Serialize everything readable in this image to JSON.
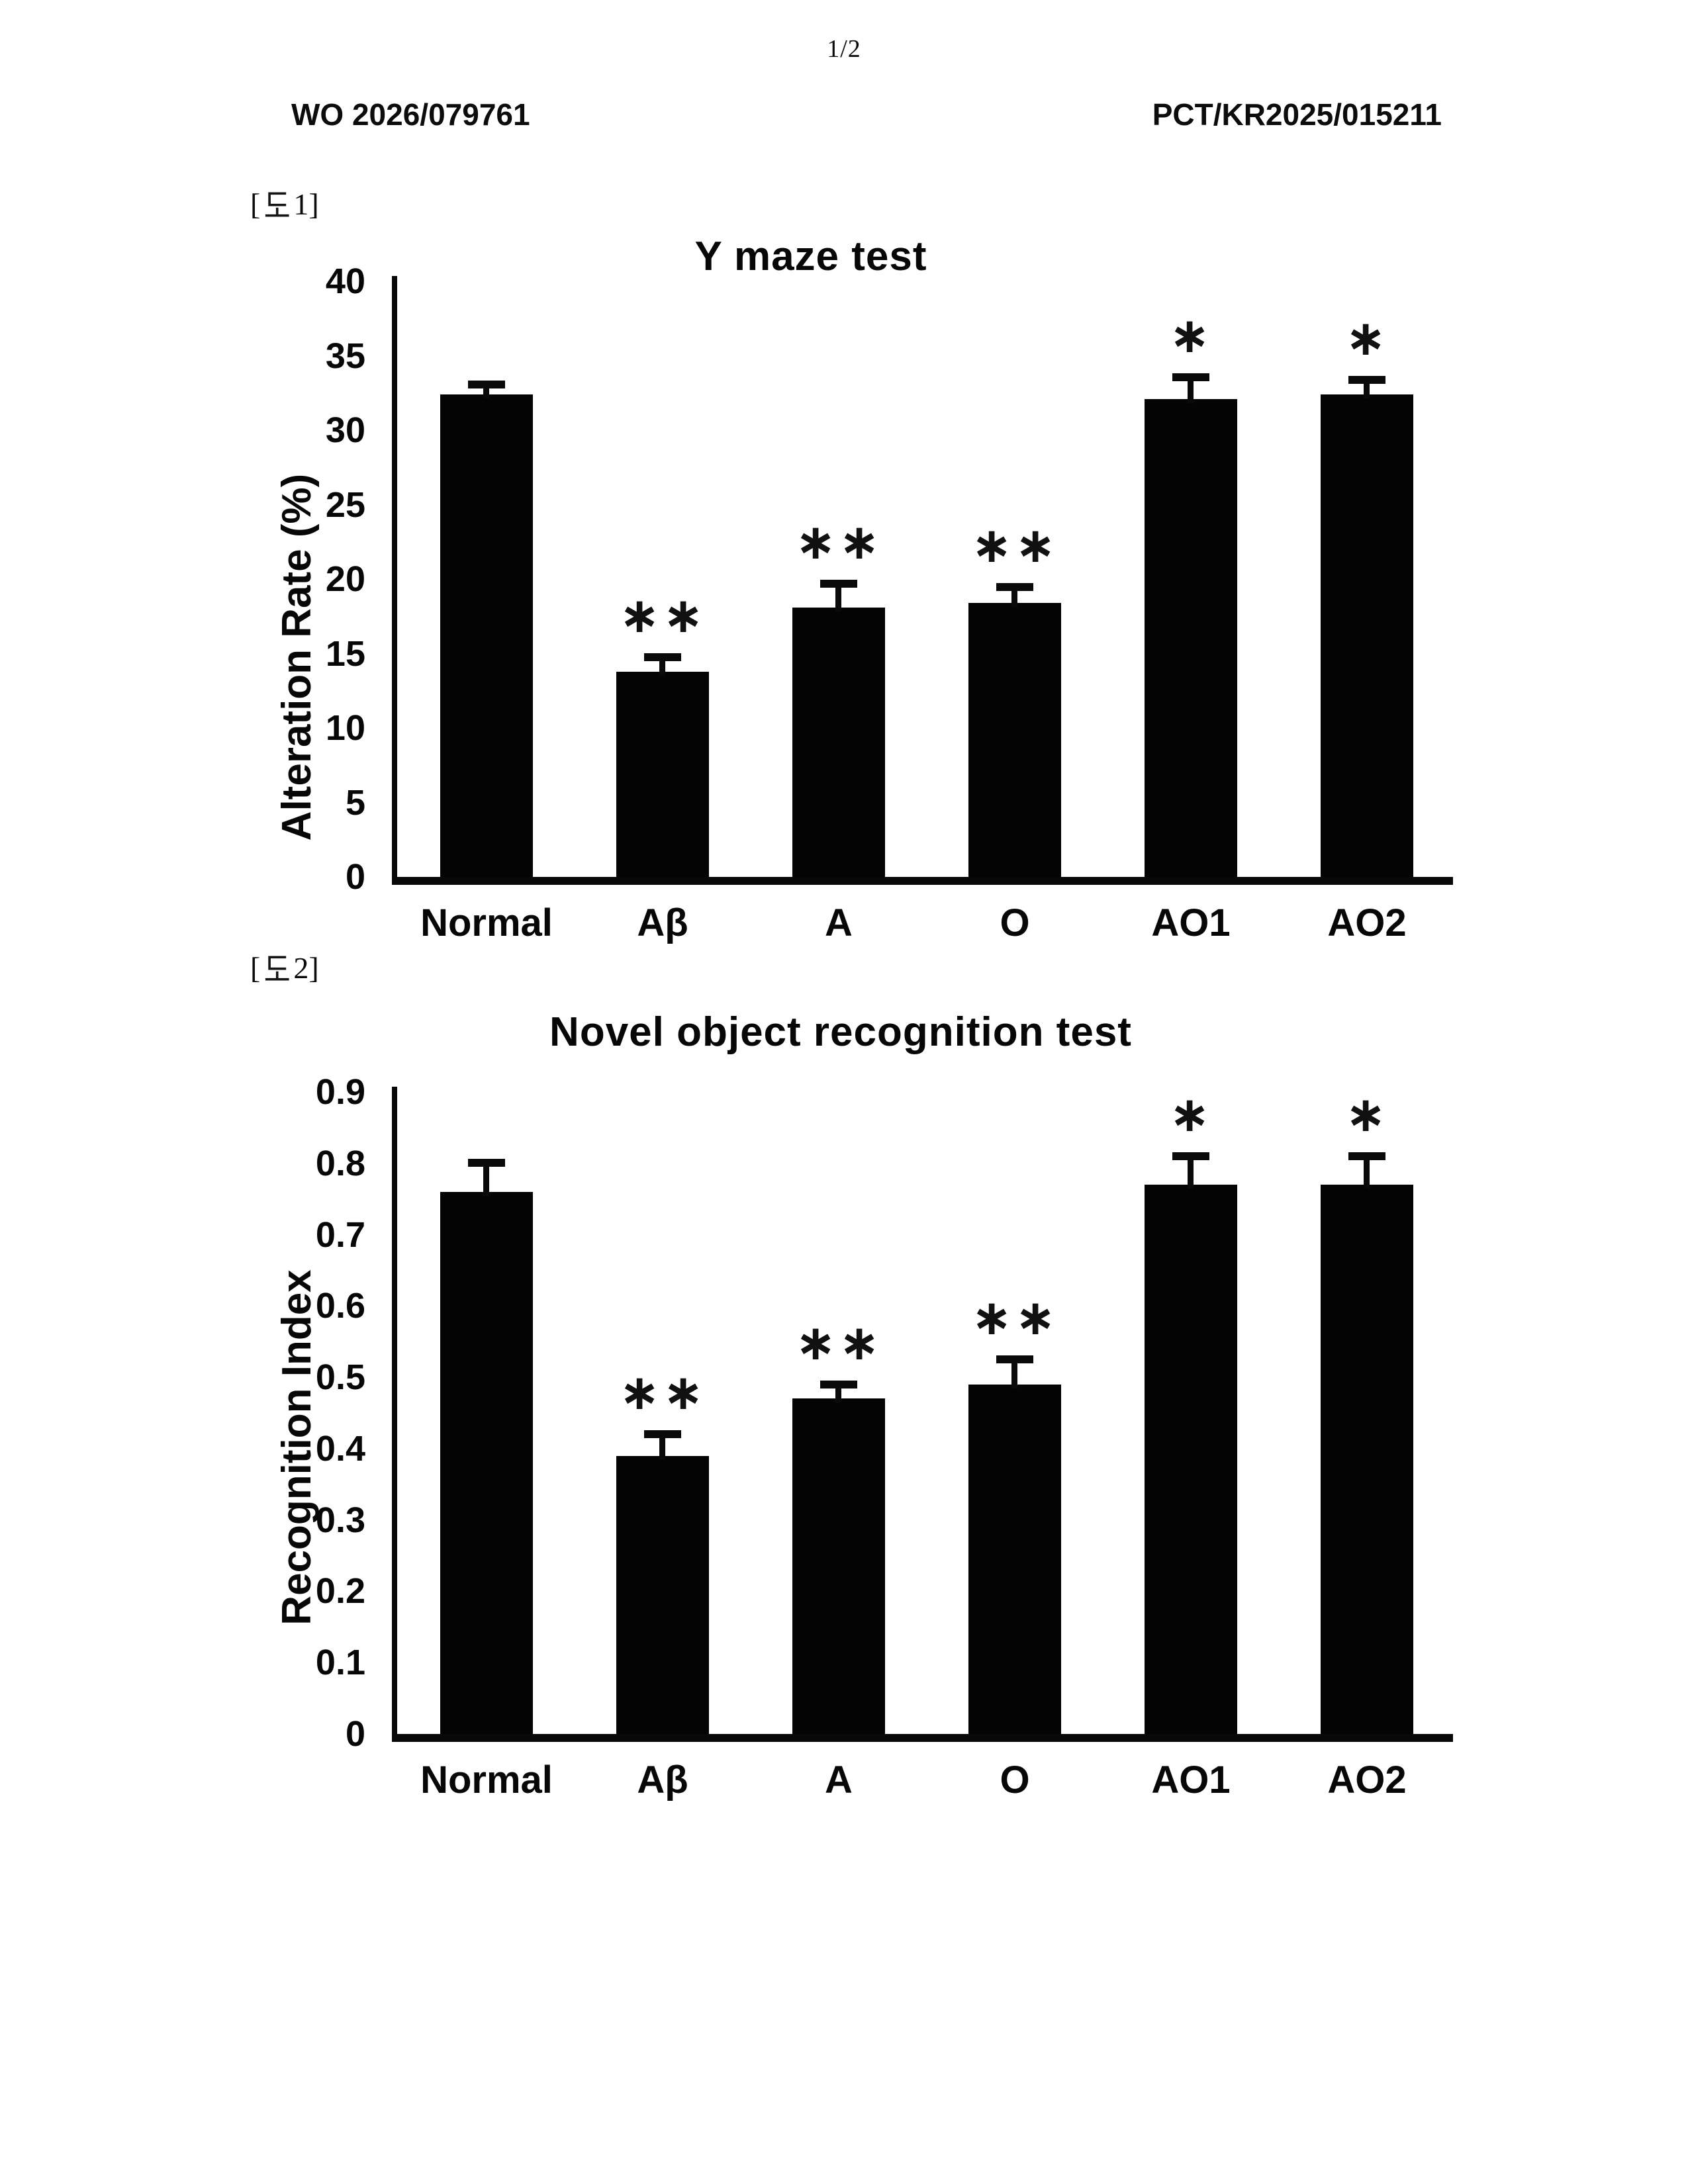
{
  "page": {
    "number": "1/2",
    "publication_number": "WO 2026/079761",
    "application_number": "PCT/KR2025/015211"
  },
  "figures": [
    {
      "label": "[도1]",
      "label_prefix": "[",
      "label_hangul": "도",
      "label_suffix": "1]"
    },
    {
      "label": "[도2]",
      "label_prefix": "[",
      "label_hangul": "도",
      "label_suffix": "2]"
    }
  ],
  "chart_data": [
    {
      "type": "bar",
      "title": "Y maze test",
      "xlabel": "",
      "ylabel": "Alteration Rate (%)",
      "categories": [
        "Normal",
        "Aβ",
        "A",
        "O",
        "AO1",
        "AO2"
      ],
      "values": [
        32.4,
        13.8,
        18.1,
        18.4,
        32.1,
        32.4
      ],
      "errors": [
        0.9,
        1.2,
        1.8,
        1.3,
        1.7,
        1.2
      ],
      "significance": [
        "",
        "**",
        "**",
        "**",
        "*",
        "*"
      ],
      "ylim": [
        0,
        40
      ],
      "ytick_step": 5,
      "grid": false,
      "legend": false,
      "bar_color": "#040404"
    },
    {
      "type": "bar",
      "title": "Novel object recognition test",
      "xlabel": "",
      "ylabel": "Recognition Index",
      "categories": [
        "Normal",
        "Aβ",
        "A",
        "O",
        "AO1",
        "AO2"
      ],
      "values": [
        0.76,
        0.39,
        0.47,
        0.49,
        0.77,
        0.77
      ],
      "errors": [
        0.045,
        0.035,
        0.025,
        0.04,
        0.045,
        0.045
      ],
      "significance": [
        "",
        "**",
        "**",
        "**",
        "*",
        "*"
      ],
      "ylim": [
        0,
        0.9
      ],
      "ytick_step": 0.1,
      "grid": false,
      "legend": false,
      "bar_color": "#040404"
    }
  ]
}
